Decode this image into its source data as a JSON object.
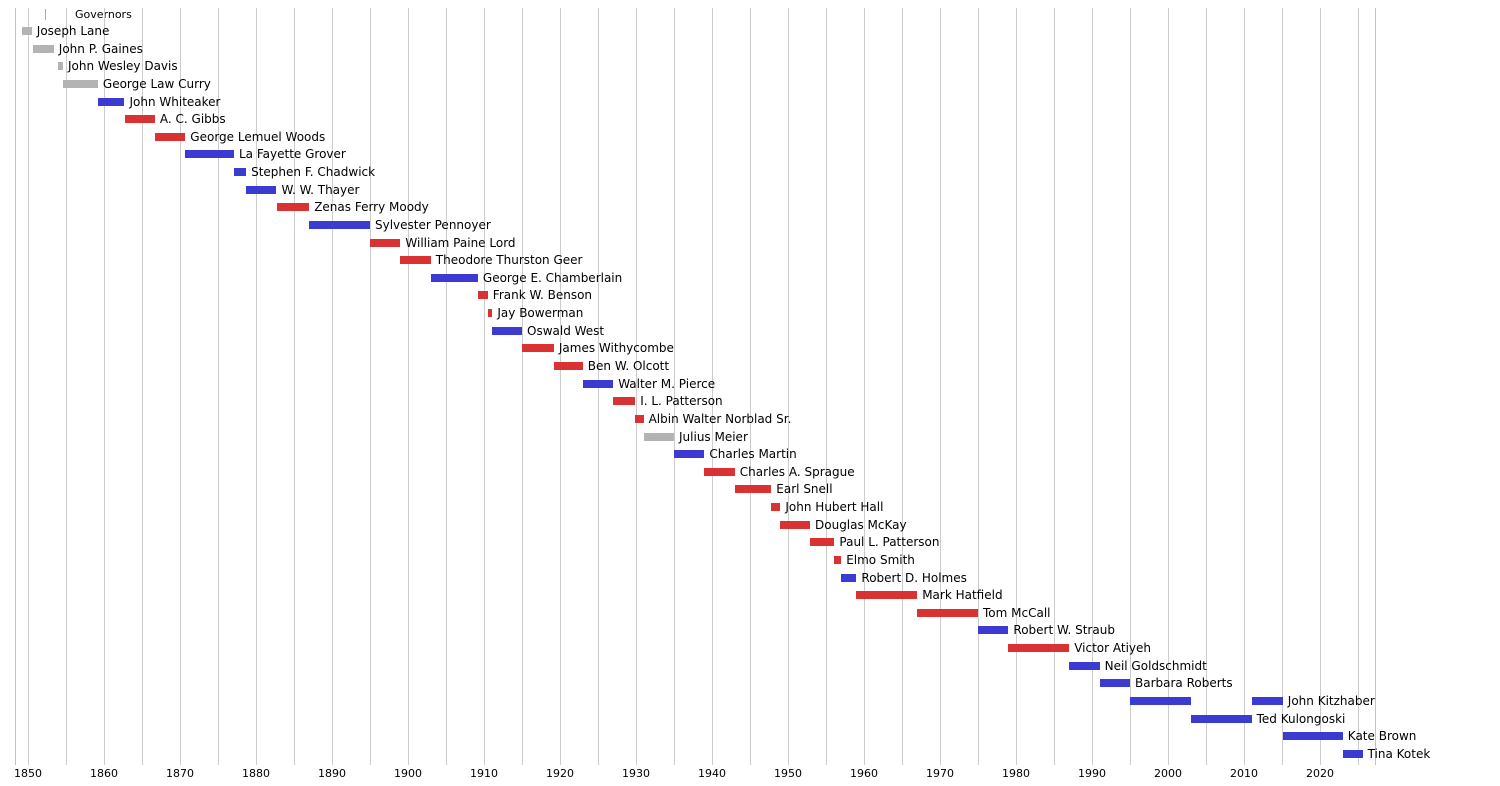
{
  "chart_data": {
    "type": "timeline",
    "subtype": "gantt-horizontal-bars",
    "title": "Governors",
    "x_axis": {
      "xlim": [
        1848.3,
        2027.2
      ],
      "grid_start": 1850,
      "grid_end": 2025,
      "grid_interval": 5,
      "major_tick_interval": 10,
      "tick_labels": [
        "1850",
        "1860",
        "1870",
        "1880",
        "1890",
        "1900",
        "1910",
        "1920",
        "1930",
        "1940",
        "1950",
        "1960",
        "1970",
        "1980",
        "1990",
        "2000",
        "2010",
        "2020"
      ]
    },
    "colors": {
      "red": "#d93232",
      "blue": "#3b3bd1",
      "gray": "#b3b3b3",
      "grid": "#cccccc",
      "border": "#c2c2c2",
      "text": "#000000",
      "background": "#ffffff"
    },
    "rows": [
      {
        "name": "Joseph Lane",
        "color": "gray",
        "segments": [
          [
            1849.2,
            1850.5
          ]
        ]
      },
      {
        "name": "John P. Gaines",
        "color": "gray",
        "segments": [
          [
            1850.6,
            1853.4
          ]
        ]
      },
      {
        "name": "John Wesley Davis",
        "color": "gray",
        "segments": [
          [
            1853.9,
            1854.6
          ]
        ]
      },
      {
        "name": "George Law Curry",
        "color": "gray",
        "segments": [
          [
            1854.6,
            1859.2
          ]
        ]
      },
      {
        "name": "John Whiteaker",
        "color": "blue",
        "segments": [
          [
            1859.2,
            1862.7
          ]
        ]
      },
      {
        "name": "A. C. Gibbs",
        "color": "red",
        "segments": [
          [
            1862.7,
            1866.7
          ]
        ]
      },
      {
        "name": "George Lemuel Woods",
        "color": "red",
        "segments": [
          [
            1866.7,
            1870.7
          ]
        ]
      },
      {
        "name": "La Fayette Grover",
        "color": "blue",
        "segments": [
          [
            1870.7,
            1877.1
          ]
        ]
      },
      {
        "name": "Stephen F. Chadwick",
        "color": "blue",
        "segments": [
          [
            1877.1,
            1878.7
          ]
        ]
      },
      {
        "name": "W. W. Thayer",
        "color": "blue",
        "segments": [
          [
            1878.7,
            1882.7
          ]
        ]
      },
      {
        "name": "Zenas Ferry Moody",
        "color": "red",
        "segments": [
          [
            1882.7,
            1887.0
          ]
        ]
      },
      {
        "name": "Sylvester Pennoyer",
        "color": "blue",
        "segments": [
          [
            1887.0,
            1895.0
          ]
        ]
      },
      {
        "name": "William Paine Lord",
        "color": "red",
        "segments": [
          [
            1895.0,
            1899.0
          ]
        ]
      },
      {
        "name": "Theodore Thurston Geer",
        "color": "red",
        "segments": [
          [
            1899.0,
            1903.0
          ]
        ]
      },
      {
        "name": "George E. Chamberlain",
        "color": "blue",
        "segments": [
          [
            1903.0,
            1909.2
          ]
        ]
      },
      {
        "name": "Frank W. Benson",
        "color": "red",
        "segments": [
          [
            1909.2,
            1910.5
          ]
        ]
      },
      {
        "name": "Jay Bowerman",
        "color": "red",
        "segments": [
          [
            1910.5,
            1911.1
          ]
        ]
      },
      {
        "name": "Oswald West",
        "color": "blue",
        "segments": [
          [
            1911.1,
            1915.0
          ]
        ]
      },
      {
        "name": "James Withycombe",
        "color": "red",
        "segments": [
          [
            1915.0,
            1919.2
          ]
        ]
      },
      {
        "name": "Ben W. Olcott",
        "color": "red",
        "segments": [
          [
            1919.2,
            1923.0
          ]
        ]
      },
      {
        "name": "Walter M. Pierce",
        "color": "blue",
        "segments": [
          [
            1923.0,
            1927.0
          ]
        ]
      },
      {
        "name": "I. L. Patterson",
        "color": "red",
        "segments": [
          [
            1927.0,
            1929.9
          ]
        ]
      },
      {
        "name": "Albin Walter Norblad Sr.",
        "color": "red",
        "segments": [
          [
            1929.9,
            1931.0
          ]
        ]
      },
      {
        "name": "Julius Meier",
        "color": "gray",
        "segments": [
          [
            1931.0,
            1935.0
          ]
        ]
      },
      {
        "name": "Charles Martin",
        "color": "blue",
        "segments": [
          [
            1935.0,
            1939.0
          ]
        ]
      },
      {
        "name": "Charles A. Sprague",
        "color": "red",
        "segments": [
          [
            1939.0,
            1943.0
          ]
        ]
      },
      {
        "name": "Earl Snell",
        "color": "red",
        "segments": [
          [
            1943.0,
            1947.8
          ]
        ]
      },
      {
        "name": "John Hubert Hall",
        "color": "red",
        "segments": [
          [
            1947.8,
            1949.0
          ]
        ]
      },
      {
        "name": "Douglas McKay",
        "color": "red",
        "segments": [
          [
            1949.0,
            1952.9
          ]
        ]
      },
      {
        "name": "Paul L. Patterson",
        "color": "red",
        "segments": [
          [
            1952.9,
            1956.1
          ]
        ]
      },
      {
        "name": "Elmo Smith",
        "color": "red",
        "segments": [
          [
            1956.1,
            1957.0
          ]
        ]
      },
      {
        "name": "Robert D. Holmes",
        "color": "blue",
        "segments": [
          [
            1957.0,
            1959.0
          ]
        ]
      },
      {
        "name": "Mark Hatfield",
        "color": "red",
        "segments": [
          [
            1959.0,
            1967.0
          ]
        ]
      },
      {
        "name": "Tom McCall",
        "color": "red",
        "segments": [
          [
            1967.0,
            1975.0
          ]
        ]
      },
      {
        "name": "Robert W. Straub",
        "color": "blue",
        "segments": [
          [
            1975.0,
            1979.0
          ]
        ]
      },
      {
        "name": "Victor Atiyeh",
        "color": "red",
        "segments": [
          [
            1979.0,
            1987.0
          ]
        ]
      },
      {
        "name": "Neil Goldschmidt",
        "color": "blue",
        "segments": [
          [
            1987.0,
            1991.0
          ]
        ]
      },
      {
        "name": "Barbara Roberts",
        "color": "blue",
        "segments": [
          [
            1991.0,
            1995.0
          ]
        ]
      },
      {
        "name": "John Kitzhaber",
        "color": "blue",
        "segments": [
          [
            1995.0,
            2003.0
          ],
          [
            2011.0,
            2015.1
          ]
        ]
      },
      {
        "name": "Ted Kulongoski",
        "color": "blue",
        "segments": [
          [
            2003.0,
            2011.0
          ]
        ]
      },
      {
        "name": "Kate Brown",
        "color": "blue",
        "segments": [
          [
            2015.1,
            2023.0
          ]
        ]
      },
      {
        "name": "Tina Kotek",
        "color": "blue",
        "segments": [
          [
            2023.0,
            2025.6
          ]
        ]
      }
    ]
  }
}
